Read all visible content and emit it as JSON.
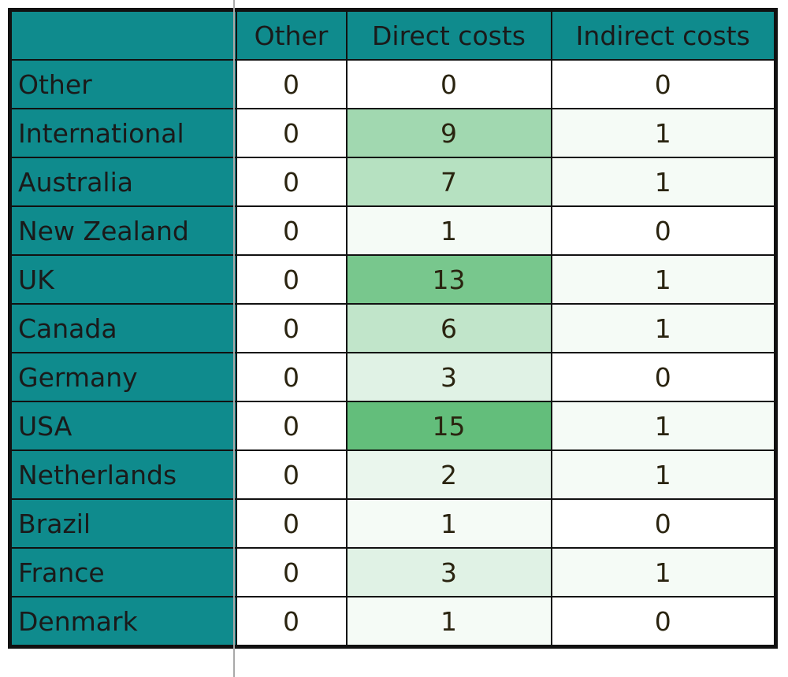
{
  "table": {
    "columns": [
      "Other",
      "Direct costs",
      "Indirect costs"
    ],
    "color_scale": {
      "low": "#ffffff",
      "high": "#63be7b"
    },
    "rows": [
      {
        "label": "Other",
        "values": [
          0,
          0,
          0
        ]
      },
      {
        "label": "International",
        "values": [
          0,
          9,
          1
        ]
      },
      {
        "label": "Australia",
        "values": [
          0,
          7,
          1
        ]
      },
      {
        "label": "New Zealand",
        "values": [
          0,
          1,
          0
        ]
      },
      {
        "label": "UK",
        "values": [
          0,
          13,
          1
        ]
      },
      {
        "label": "Canada",
        "values": [
          0,
          6,
          1
        ]
      },
      {
        "label": "Germany",
        "values": [
          0,
          3,
          0
        ]
      },
      {
        "label": "USA",
        "values": [
          0,
          15,
          1
        ]
      },
      {
        "label": "Netherlands",
        "values": [
          0,
          2,
          1
        ]
      },
      {
        "label": "Brazil",
        "values": [
          0,
          1,
          0
        ]
      },
      {
        "label": "France",
        "values": [
          0,
          3,
          1
        ]
      },
      {
        "label": "Denmark",
        "values": [
          0,
          1,
          0
        ]
      }
    ]
  }
}
